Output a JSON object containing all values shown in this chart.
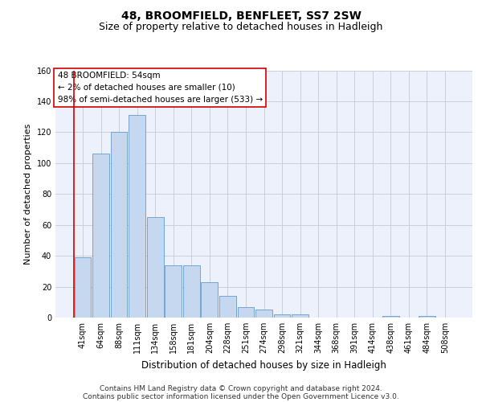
{
  "title": "48, BROOMFIELD, BENFLEET, SS7 2SW",
  "subtitle": "Size of property relative to detached houses in Hadleigh",
  "xlabel": "Distribution of detached houses by size in Hadleigh",
  "ylabel": "Number of detached properties",
  "footer_line1": "Contains HM Land Registry data © Crown copyright and database right 2024.",
  "footer_line2": "Contains public sector information licensed under the Open Government Licence v3.0.",
  "annotation_line1": "48 BROOMFIELD: 54sqm",
  "annotation_line2": "← 2% of detached houses are smaller (10)",
  "annotation_line3": "98% of semi-detached houses are larger (533) →",
  "bar_labels": [
    "41sqm",
    "64sqm",
    "88sqm",
    "111sqm",
    "134sqm",
    "158sqm",
    "181sqm",
    "204sqm",
    "228sqm",
    "251sqm",
    "274sqm",
    "298sqm",
    "321sqm",
    "344sqm",
    "368sqm",
    "391sqm",
    "414sqm",
    "438sqm",
    "461sqm",
    "484sqm",
    "508sqm"
  ],
  "bar_values": [
    39,
    106,
    120,
    131,
    65,
    34,
    34,
    23,
    14,
    7,
    5,
    2,
    2,
    0,
    0,
    0,
    0,
    1,
    0,
    1,
    0
  ],
  "bar_color": "#c5d8f0",
  "bar_edge_color": "#6699cc",
  "highlight_line_color": "#cc0000",
  "annotation_box_edge_color": "#cc0000",
  "annotation_box_face_color": "#ffffff",
  "ylim": [
    0,
    160
  ],
  "yticks": [
    0,
    20,
    40,
    60,
    80,
    100,
    120,
    140,
    160
  ],
  "grid_color": "#c8d0e0",
  "background_color": "#edf1fb",
  "title_fontsize": 10,
  "subtitle_fontsize": 9,
  "xlabel_fontsize": 8.5,
  "ylabel_fontsize": 8,
  "tick_fontsize": 7,
  "annotation_fontsize": 7.5,
  "footer_fontsize": 6.5
}
